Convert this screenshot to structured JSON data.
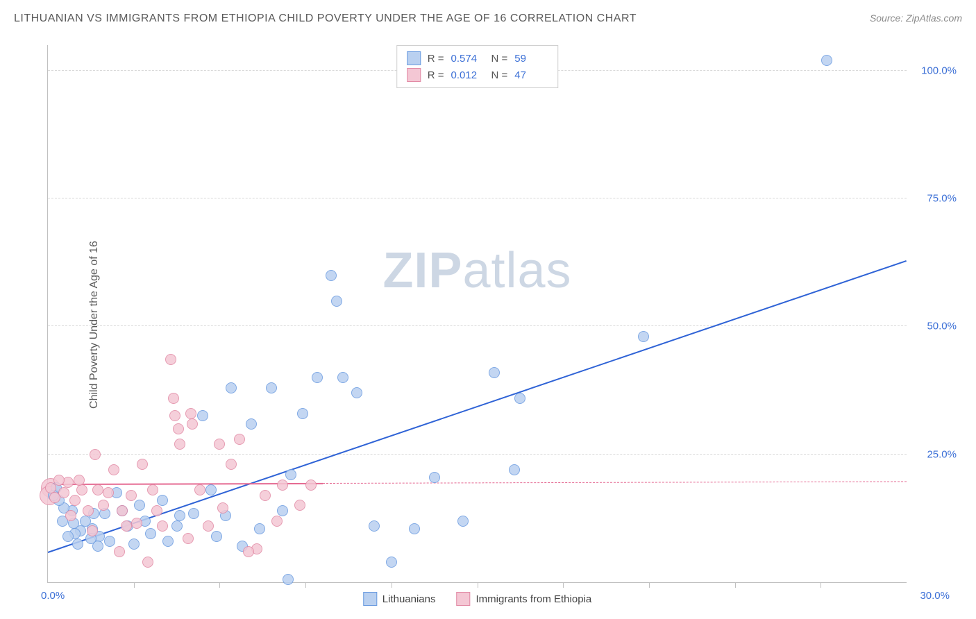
{
  "title": "LITHUANIAN VS IMMIGRANTS FROM ETHIOPIA CHILD POVERTY UNDER THE AGE OF 16 CORRELATION CHART",
  "source_prefix": "Source: ",
  "source_name": "ZipAtlas.com",
  "y_axis_label": "Child Poverty Under the Age of 16",
  "watermark_a": "ZIP",
  "watermark_b": "atlas",
  "chart": {
    "type": "scatter",
    "xlim": [
      0,
      30
    ],
    "ylim": [
      0,
      105
    ],
    "x_origin_label": "0.0%",
    "x_end_label": "30.0%",
    "y_ticks": [
      25,
      50,
      75,
      100
    ],
    "y_tick_labels": [
      "25.0%",
      "50.0%",
      "75.0%",
      "100.0%"
    ],
    "x_tick_positions": [
      3,
      6,
      9,
      12,
      15,
      18,
      21,
      24,
      27
    ],
    "background_color": "#ffffff",
    "grid_color": "#d8d8d8",
    "axis_color": "#c0c0c0",
    "marker_radius": 8,
    "marker_radius_large": 14,
    "series": [
      {
        "name": "Lithuanians",
        "fill": "#b9d0f0",
        "stroke": "#6a9be0",
        "r_value": "0.574",
        "n_value": "59",
        "trend": {
          "x1": 0,
          "y1": 6,
          "x2": 30,
          "y2": 63,
          "color": "#2f63d6",
          "dashed_after_x": null
        },
        "points": [
          [
            27.2,
            102
          ],
          [
            20.8,
            48
          ],
          [
            16.5,
            36
          ],
          [
            15.6,
            41
          ],
          [
            16.3,
            22
          ],
          [
            14.5,
            12
          ],
          [
            13.5,
            20.5
          ],
          [
            12.8,
            10.5
          ],
          [
            12,
            4
          ],
          [
            11.4,
            11
          ],
          [
            10.8,
            37
          ],
          [
            10.1,
            55
          ],
          [
            9.9,
            60
          ],
          [
            10.3,
            40
          ],
          [
            9.4,
            40
          ],
          [
            8.9,
            33
          ],
          [
            8.5,
            21
          ],
          [
            8.4,
            0.5
          ],
          [
            8.2,
            14
          ],
          [
            7.8,
            38
          ],
          [
            7.4,
            10.5
          ],
          [
            7.1,
            31
          ],
          [
            6.8,
            7
          ],
          [
            6.4,
            38
          ],
          [
            6.2,
            13
          ],
          [
            5.9,
            9
          ],
          [
            5.7,
            18
          ],
          [
            5.4,
            32.5
          ],
          [
            5.1,
            13.5
          ],
          [
            4.6,
            13
          ],
          [
            4.5,
            11
          ],
          [
            4.2,
            8
          ],
          [
            4.0,
            16
          ],
          [
            3.6,
            9.5
          ],
          [
            3.4,
            12
          ],
          [
            3.2,
            15
          ],
          [
            3.0,
            7.5
          ],
          [
            2.8,
            11
          ],
          [
            2.6,
            14
          ],
          [
            2.4,
            17.5
          ],
          [
            2.15,
            8
          ],
          [
            2.0,
            13.5
          ],
          [
            1.8,
            9
          ],
          [
            1.75,
            7
          ],
          [
            1.6,
            13.5
          ],
          [
            1.55,
            10.5
          ],
          [
            1.5,
            8.5
          ],
          [
            1.3,
            12
          ],
          [
            1.15,
            10
          ],
          [
            1.05,
            7.5
          ],
          [
            0.95,
            9.5
          ],
          [
            0.9,
            11.5
          ],
          [
            0.85,
            14
          ],
          [
            0.7,
            9
          ],
          [
            0.55,
            14.5
          ],
          [
            0.5,
            12
          ],
          [
            0.4,
            16
          ],
          [
            0.3,
            18.5
          ],
          [
            0.2,
            17
          ]
        ]
      },
      {
        "name": "Immigrants from Ethiopia",
        "fill": "#f4c7d4",
        "stroke": "#e28aa5",
        "r_value": "0.012",
        "n_value": "47",
        "trend": {
          "x1": 0,
          "y1": 19.2,
          "x2": 30,
          "y2": 19.7,
          "color": "#e56a92",
          "dashed_after_x": 9.6
        },
        "points": [
          [
            9.2,
            19
          ],
          [
            8.8,
            15
          ],
          [
            8.2,
            19
          ],
          [
            8.0,
            12
          ],
          [
            7.6,
            17
          ],
          [
            7.3,
            6.5
          ],
          [
            7.0,
            6
          ],
          [
            6.7,
            28
          ],
          [
            6.4,
            23
          ],
          [
            6.1,
            14.5
          ],
          [
            6.0,
            27
          ],
          [
            5.6,
            11
          ],
          [
            5.3,
            18
          ],
          [
            5.05,
            31
          ],
          [
            5.0,
            33
          ],
          [
            4.9,
            8.5
          ],
          [
            4.6,
            27
          ],
          [
            4.55,
            30
          ],
          [
            4.45,
            32.5
          ],
          [
            4.4,
            36
          ],
          [
            4.3,
            43.5
          ],
          [
            4.0,
            11
          ],
          [
            3.8,
            14
          ],
          [
            3.65,
            18
          ],
          [
            3.5,
            4
          ],
          [
            3.3,
            23
          ],
          [
            3.1,
            11.5
          ],
          [
            2.9,
            17
          ],
          [
            2.75,
            11
          ],
          [
            2.6,
            14
          ],
          [
            2.5,
            6
          ],
          [
            2.3,
            22
          ],
          [
            2.1,
            17.5
          ],
          [
            1.95,
            15
          ],
          [
            1.75,
            18
          ],
          [
            1.65,
            25
          ],
          [
            1.55,
            10
          ],
          [
            1.4,
            14
          ],
          [
            1.2,
            18
          ],
          [
            1.1,
            20
          ],
          [
            0.95,
            16
          ],
          [
            0.8,
            13
          ],
          [
            0.7,
            19.5
          ],
          [
            0.55,
            17.5
          ],
          [
            0.4,
            20
          ],
          [
            0.25,
            16.5
          ],
          [
            0.1,
            18.5
          ]
        ]
      }
    ],
    "large_cluster": {
      "series": 1,
      "points": [
        [
          0.1,
          18.5
        ],
        [
          0.05,
          17
        ]
      ]
    }
  },
  "legend_top": {
    "r_label": "R =",
    "n_label": "N ="
  }
}
